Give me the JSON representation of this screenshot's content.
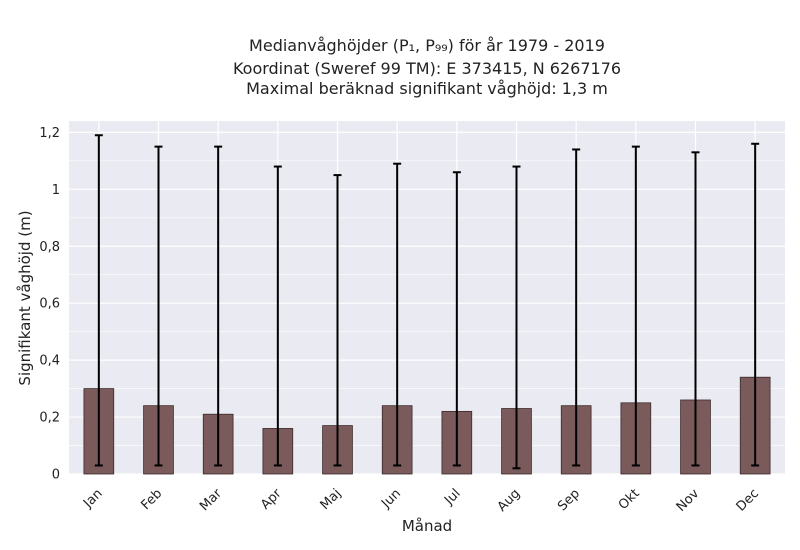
{
  "chart_data": {
    "type": "bar",
    "title_lines": [
      "Medianvåghöjder (P₁, P₉₉) för år 1979 - 2019",
      "Koordinat (Sweref 99 TM): E 373415, N 6267176",
      "Maximal beräknad signifikant våghöjd: 1,3 m"
    ],
    "xlabel": "Månad",
    "ylabel": "Signifikant våghöjd (m)",
    "categories": [
      "Jan",
      "Feb",
      "Mar",
      "Apr",
      "Maj",
      "Jun",
      "Jul",
      "Aug",
      "Sep",
      "Okt",
      "Nov",
      "Dec"
    ],
    "values": [
      0.3,
      0.24,
      0.21,
      0.16,
      0.17,
      0.24,
      0.22,
      0.23,
      0.24,
      0.25,
      0.26,
      0.34
    ],
    "err_low": [
      0.03,
      0.03,
      0.03,
      0.03,
      0.03,
      0.03,
      0.03,
      0.02,
      0.03,
      0.03,
      0.03,
      0.03
    ],
    "err_high": [
      1.19,
      1.15,
      1.15,
      1.08,
      1.05,
      1.09,
      1.06,
      1.08,
      1.14,
      1.15,
      1.13,
      1.16
    ],
    "ylim": [
      0,
      1.24
    ],
    "yticks": [
      0,
      0.2,
      0.4,
      0.6,
      0.8,
      1,
      1.2
    ],
    "ytick_labels": [
      "0",
      "0,2",
      "0,4",
      "0,6",
      "0,8",
      "1",
      "1,2"
    ],
    "grid": true,
    "colors": {
      "bar": "#7a5a5a",
      "bar_edge": "#3b2a2a",
      "background": "#eaeaf2",
      "grid": "#ffffff",
      "error": "#000000"
    }
  }
}
